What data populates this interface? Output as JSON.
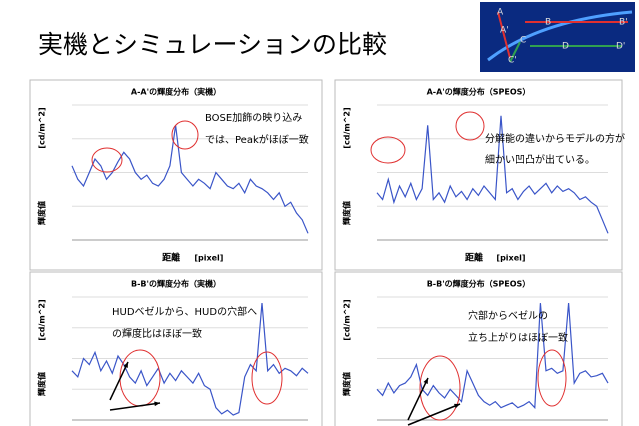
{
  "title": "実機とシミュレーションの比較",
  "thumbnail_labels": [
    "A",
    "B",
    "B'",
    "A'",
    "C",
    "D",
    "D'",
    "C'"
  ],
  "chart_data": [
    {
      "type": "line",
      "title": "A-A'の輝度分布（実機）",
      "y_unit": "[cd/m^2]",
      "ylabel": "輝度値",
      "xlabel": "距離",
      "x_unit": "[pixel]",
      "color": "#3a55c8",
      "ylim": [
        0,
        100
      ],
      "annotations": [
        "BOSE加飾の映り込み",
        "では、Peakがほぼ一致"
      ],
      "values": [
        55,
        45,
        40,
        50,
        60,
        55,
        45,
        50,
        58,
        65,
        60,
        50,
        45,
        48,
        42,
        40,
        45,
        55,
        85,
        50,
        45,
        40,
        45,
        42,
        38,
        50,
        45,
        40,
        38,
        42,
        35,
        45,
        40,
        38,
        35,
        30,
        35,
        25,
        28,
        20,
        15,
        5
      ]
    },
    {
      "type": "line",
      "title": "A-A'の輝度分布（SPEOS）",
      "y_unit": "[cd/m^2]",
      "ylabel": "輝度値",
      "xlabel": "距離",
      "x_unit": "[pixel]",
      "color": "#3a55c8",
      "ylim": [
        0,
        100
      ],
      "annotations": [
        "分解能の違いからモデルの方が",
        "細かい凹凸が出ている。"
      ],
      "values": [
        35,
        30,
        45,
        28,
        40,
        32,
        42,
        30,
        38,
        85,
        30,
        35,
        28,
        40,
        32,
        36,
        30,
        38,
        33,
        40,
        35,
        30,
        92,
        35,
        38,
        30,
        36,
        40,
        34,
        38,
        42,
        35,
        40,
        36,
        38,
        35,
        30,
        32,
        28,
        25,
        15,
        5
      ]
    },
    {
      "type": "line",
      "title": "B-B'の輝度分布（実機）",
      "y_unit": "[cd/m^2]",
      "ylabel": "輝度値",
      "color": "#3a55c8",
      "ylim": [
        0,
        100
      ],
      "annotations": [
        "HUDベゼルから、HUDの穴部へ",
        "の輝度比はほぼ一致"
      ],
      "values": [
        40,
        35,
        50,
        45,
        55,
        40,
        48,
        38,
        52,
        45,
        35,
        30,
        40,
        28,
        35,
        42,
        30,
        38,
        32,
        40,
        35,
        30,
        38,
        28,
        25,
        10,
        5,
        8,
        4,
        6,
        35,
        45,
        40,
        95,
        40,
        45,
        38,
        42,
        40,
        36,
        42,
        38
      ]
    },
    {
      "type": "line",
      "title": "B-B'の輝度分布（SPEOS）",
      "y_unit": "[cd/m^2]",
      "ylabel": "輝度値",
      "color": "#3a55c8",
      "ylim": [
        0,
        100
      ],
      "annotations": [
        "穴部からベゼルの",
        "立ち上がりはほぼ一致"
      ],
      "values": [
        25,
        20,
        30,
        22,
        28,
        30,
        35,
        45,
        25,
        20,
        28,
        22,
        18,
        25,
        20,
        15,
        40,
        30,
        20,
        15,
        12,
        15,
        10,
        12,
        14,
        10,
        12,
        15,
        10,
        95,
        40,
        42,
        38,
        40,
        95,
        30,
        38,
        40,
        35,
        36,
        38,
        30
      ]
    }
  ]
}
